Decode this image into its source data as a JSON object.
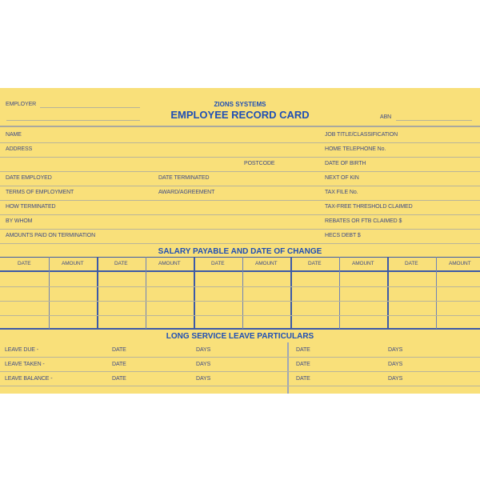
{
  "header": {
    "employer_label": "EMPLOYER",
    "company": "ZIONS SYSTEMS",
    "title": "EMPLOYEE RECORD CARD",
    "abn_label": "ABN"
  },
  "fields": {
    "name": "NAME",
    "job_title": "JOB TITLE/CLASSIFICATION",
    "address": "ADDRESS",
    "home_telephone": "HOME TELEPHONE No.",
    "postcode": "POSTCODE",
    "date_of_birth": "DATE OF BIRTH",
    "date_employed": "DATE EMPLOYED",
    "date_terminated": "DATE TERMINATED",
    "next_of_kin": "NEXT OF KIN",
    "terms": "TERMS OF EMPLOYMENT",
    "award": "AWARD/AGREEMENT",
    "tax_file": "TAX FILE No.",
    "how_terminated": "HOW TERMINATED",
    "tax_free": "TAX-FREE THRESHOLD CLAIMED",
    "by_whom": "BY WHOM",
    "rebates": "REBATES OR FTB CLAIMED $",
    "amounts_paid": "AMOUNTS PAID ON TERMINATION",
    "hecs": "HECS DEBT $"
  },
  "salary": {
    "title": "SALARY PAYABLE AND DATE OF CHANGE",
    "columns": [
      "DATE",
      "AMOUNT",
      "DATE",
      "AMOUNT",
      "DATE",
      "AMOUNT",
      "DATE",
      "AMOUNT",
      "DATE",
      "AMOUNT"
    ]
  },
  "leave": {
    "title": "LONG SERVICE LEAVE PARTICULARS",
    "rows": [
      {
        "label": "LEAVE DUE -",
        "date": "DATE",
        "days": "DAYS",
        "date2": "DATE",
        "days2": "DAYS"
      },
      {
        "label": "LEAVE TAKEN -",
        "date": "DATE",
        "days": "DAYS",
        "date2": "DATE",
        "days2": "DAYS"
      },
      {
        "label": "LEAVE BALANCE -",
        "date": "DATE",
        "days": "DAYS",
        "date2": "DATE",
        "days2": "DAYS"
      }
    ]
  },
  "colors": {
    "card": "#f9e07a",
    "title": "#1f4fb5",
    "label": "#3d4a86"
  }
}
